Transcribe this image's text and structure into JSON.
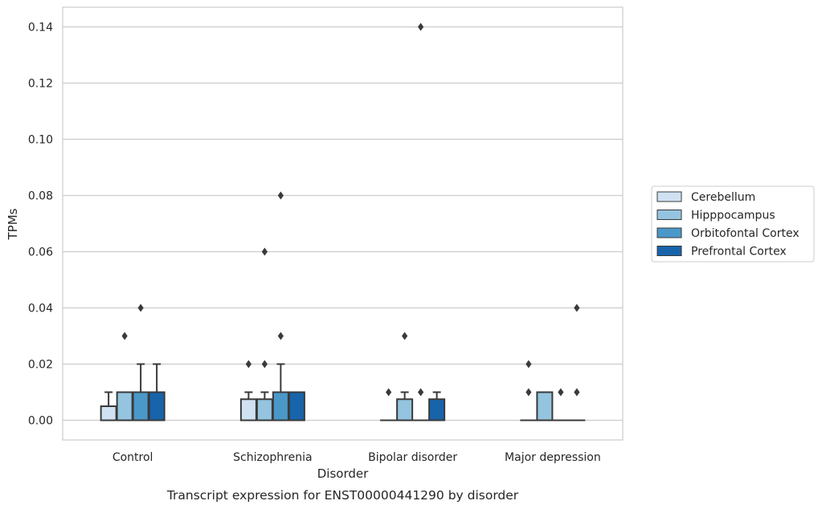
{
  "chart_data": {
    "type": "box",
    "caption": "Transcript expression for ENST00000441290 by disorder",
    "xlabel": "Disorder",
    "ylabel": "TPMs",
    "ylim": [
      -0.007,
      0.147
    ],
    "yticks": [
      0.0,
      0.02,
      0.04,
      0.06,
      0.08,
      0.1,
      0.12,
      0.14
    ],
    "ytick_labels": [
      "0.00",
      "0.02",
      "0.04",
      "0.06",
      "0.08",
      "0.10",
      "0.12",
      "0.14"
    ],
    "grid": "horizontal",
    "legend_position": "right",
    "categories": [
      "Control",
      "Schizophrenia",
      "Bipolar disorder",
      "Major depression"
    ],
    "series": [
      {
        "name": "Cerebellum",
        "color": "#d0e1f2",
        "boxes": [
          {
            "q1": 0.0,
            "median": 0.0,
            "q3": 0.005,
            "whisker_low": 0.0,
            "whisker_high": 0.01,
            "outliers": []
          },
          {
            "q1": 0.0,
            "median": 0.0,
            "q3": 0.0075,
            "whisker_low": 0.0,
            "whisker_high": 0.01,
            "outliers": [
              0.02
            ]
          },
          {
            "q1": 0.0,
            "median": 0.0,
            "q3": 0.0,
            "whisker_low": 0.0,
            "whisker_high": 0.0,
            "outliers": [
              0.01
            ]
          },
          {
            "q1": 0.0,
            "median": 0.0,
            "q3": 0.0,
            "whisker_low": 0.0,
            "whisker_high": 0.0,
            "outliers": [
              0.01,
              0.02
            ]
          }
        ]
      },
      {
        "name": "Hipppocampus",
        "color": "#94c4df",
        "boxes": [
          {
            "q1": 0.0,
            "median": 0.0,
            "q3": 0.01,
            "whisker_low": 0.0,
            "whisker_high": 0.01,
            "outliers": [
              0.03
            ]
          },
          {
            "q1": 0.0,
            "median": 0.0,
            "q3": 0.0075,
            "whisker_low": 0.0,
            "whisker_high": 0.01,
            "outliers": [
              0.02,
              0.06
            ]
          },
          {
            "q1": 0.0,
            "median": 0.0,
            "q3": 0.0075,
            "whisker_low": 0.0,
            "whisker_high": 0.01,
            "outliers": [
              0.03
            ]
          },
          {
            "q1": 0.0,
            "median": 0.0,
            "q3": 0.01,
            "whisker_low": 0.0,
            "whisker_high": 0.01,
            "outliers": []
          }
        ]
      },
      {
        "name": "Orbitofontal Cortex",
        "color": "#4a98c9",
        "boxes": [
          {
            "q1": 0.0,
            "median": 0.0,
            "q3": 0.01,
            "whisker_low": 0.0,
            "whisker_high": 0.02,
            "outliers": [
              0.04
            ]
          },
          {
            "q1": 0.0,
            "median": 0.0,
            "q3": 0.01,
            "whisker_low": 0.0,
            "whisker_high": 0.02,
            "outliers": [
              0.03,
              0.08
            ]
          },
          {
            "q1": 0.0,
            "median": 0.0,
            "q3": 0.0,
            "whisker_low": 0.0,
            "whisker_high": 0.0,
            "outliers": [
              0.01,
              0.14
            ]
          },
          {
            "q1": 0.0,
            "median": 0.0,
            "q3": 0.0,
            "whisker_low": 0.0,
            "whisker_high": 0.0,
            "outliers": [
              0.01
            ]
          }
        ]
      },
      {
        "name": "Prefrontal Cortex",
        "color": "#1764ab",
        "boxes": [
          {
            "q1": 0.0,
            "median": 0.0,
            "q3": 0.01,
            "whisker_low": 0.0,
            "whisker_high": 0.02,
            "outliers": []
          },
          {
            "q1": 0.0,
            "median": 0.0,
            "q3": 0.01,
            "whisker_low": 0.0,
            "whisker_high": 0.01,
            "outliers": []
          },
          {
            "q1": 0.0,
            "median": 0.0,
            "q3": 0.0075,
            "whisker_low": 0.0,
            "whisker_high": 0.01,
            "outliers": []
          },
          {
            "q1": 0.0,
            "median": 0.0,
            "q3": 0.0,
            "whisker_low": 0.0,
            "whisker_high": 0.0,
            "outliers": [
              0.01,
              0.04
            ]
          }
        ]
      }
    ],
    "line_color": "#3a3a3a",
    "grid_color": "#cccccc",
    "frame_color": "#cccccc"
  }
}
